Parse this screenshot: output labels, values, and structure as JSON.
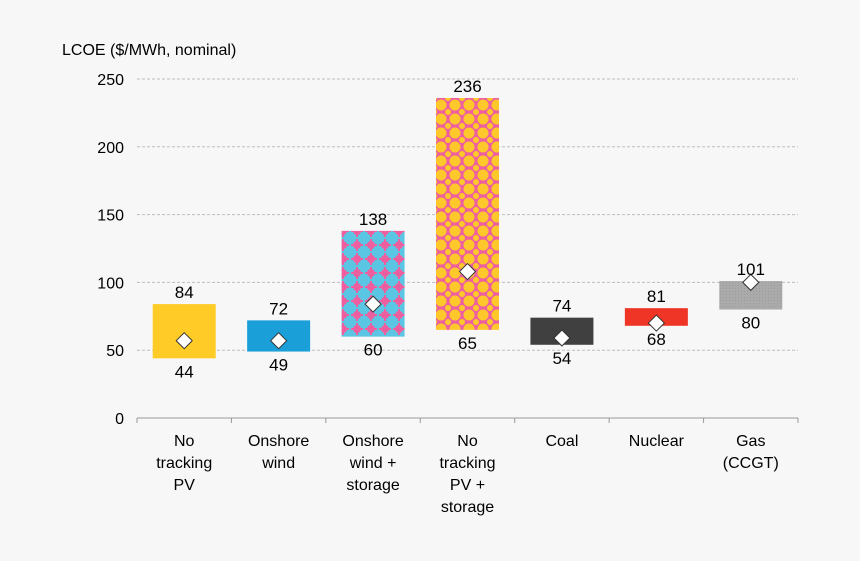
{
  "chart_data": {
    "type": "bar",
    "subtype": "floating-range",
    "ylabel": "LCOE ($/MWh, nominal)",
    "ylim": [
      0,
      250
    ],
    "yticks": [
      0,
      50,
      100,
      150,
      200,
      250
    ],
    "grid": true,
    "categories": [
      [
        "No",
        "tracking",
        "PV"
      ],
      [
        "Onshore",
        "wind"
      ],
      [
        "Onshore",
        "wind +",
        "storage"
      ],
      [
        "No",
        "tracking",
        "PV +",
        "storage"
      ],
      [
        "Coal"
      ],
      [
        "Nuclear"
      ],
      [
        "Gas",
        "(CCGT)"
      ]
    ],
    "low": [
      44,
      49,
      60,
      65,
      54,
      68,
      80
    ],
    "high": [
      84,
      72,
      138,
      236,
      74,
      81,
      101
    ],
    "midpoint": [
      57,
      57,
      84,
      108,
      59,
      70,
      100
    ],
    "colors": [
      "#ffcb26",
      "#1a9fd9",
      "pattern:#5bc6e4/#ee5fa0",
      "pattern:#fec72a/#ee5fa0",
      "#404040",
      "#ef3526",
      "#a8a8a8"
    ],
    "marker": "white-diamond"
  }
}
